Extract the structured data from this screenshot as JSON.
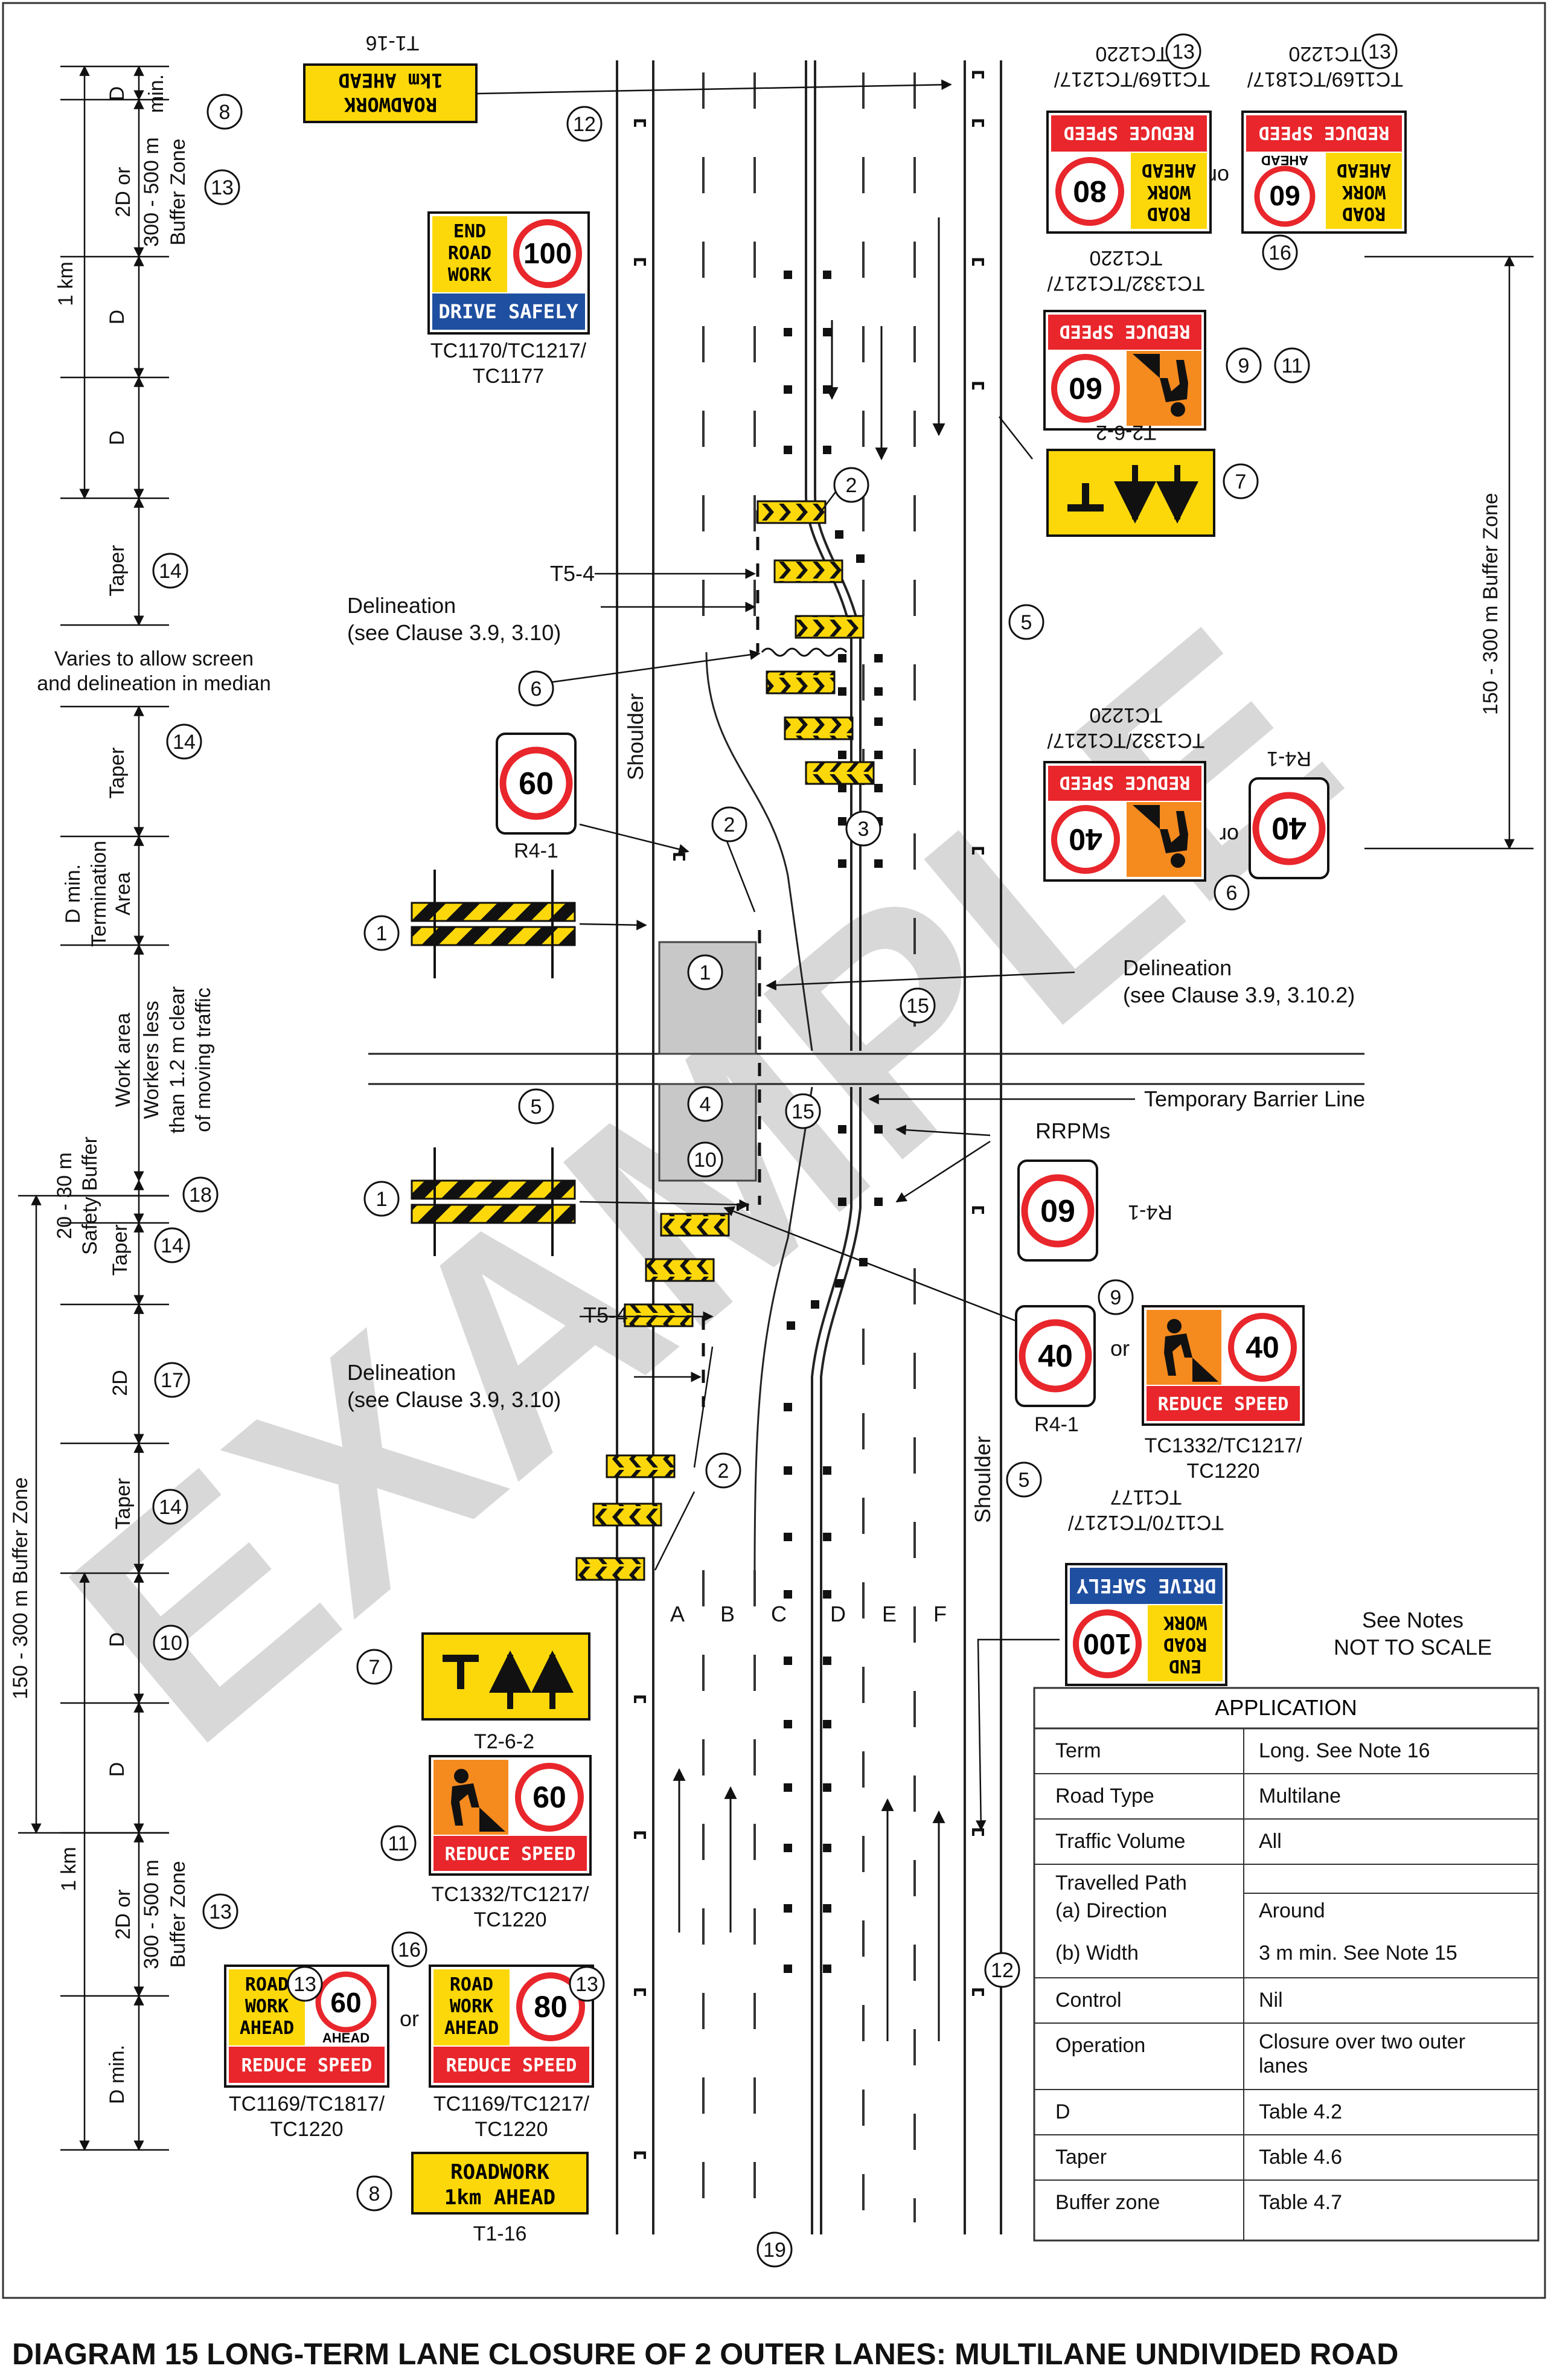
{
  "diagram_title": "DIAGRAM 15    LONG-TERM LANE CLOSURE OF 2 OUTER LANES: MULTILANE UNDIVIDED ROAD",
  "watermark": "EXAMPLE",
  "left_dims": {
    "D": "D",
    "min": "min.",
    "twoD_or": "2D or",
    "buffer_300_500": "300 - 500 m",
    "buffer_zone": "Buffer Zone",
    "one_km": "1 km",
    "taper": "Taper",
    "varies_1": "Varies to allow screen",
    "varies_2": "and delineation in median",
    "d_min": "D min.",
    "termination": "Termination",
    "area": "Area",
    "work_area": "Work area",
    "workers_1": "Workers less",
    "workers_2": "than 1.2 m clear",
    "workers_3": "of moving traffic",
    "safety_20_30": "20 - 30 m",
    "safety_buffer": "Safety Buffer",
    "twoD": "2D",
    "buffer_150_300": "150 - 300 m Buffer Zone"
  },
  "right_dims": {
    "buffer_150_300": "150 - 300 m Buffer Zone"
  },
  "callouts": {
    "n1": "1",
    "n2": "2",
    "n3": "3",
    "n4": "4",
    "n5": "5",
    "n6": "6",
    "n7": "7",
    "n8": "8",
    "n9": "9",
    "n10": "10",
    "n11": "11",
    "n12": "12",
    "n13": "13",
    "n14": "14",
    "n15": "15",
    "n16": "16",
    "n17": "17",
    "n18": "18",
    "n19": "19"
  },
  "labels": {
    "shoulder": "Shoulder",
    "t5_4": "T5-4",
    "delineation": "Delineation",
    "see_39_310": "(see Clause 3.9, 3.10)",
    "see_39_3102": "(see Clause 3.9, 3.10.2)",
    "temp_barrier": "Temporary Barrier Line",
    "rrpms": "RRPMs",
    "or": "or",
    "see_notes": "See Notes",
    "not_to_scale": "NOT TO SCALE",
    "lanes": [
      "A",
      "B",
      "C",
      "D",
      "E",
      "F"
    ]
  },
  "signs": {
    "roadwork_1km": {
      "line1": "ROADWORK",
      "line2": "1km AHEAD",
      "code": "T1-16"
    },
    "end_roadwork": {
      "l1": "END",
      "l2": "ROAD",
      "l3": "WORK",
      "speed": "100",
      "bar": "DRIVE SAFELY",
      "code1": "TC1170/TC1217/",
      "code2": "TC1177"
    },
    "rw80": {
      "l1": "ROAD",
      "l2": "WORK",
      "l3": "AHEAD",
      "speed": "80",
      "bar": "REDUCE SPEED",
      "code1": "TC1169/TC1217/",
      "code2": "TC1220"
    },
    "rw60": {
      "l1": "ROAD",
      "l2": "WORK",
      "l3": "AHEAD",
      "speed": "60",
      "ahead": "AHEAD",
      "bar": "REDUCE SPEED",
      "code1": "TC1169/TC1817/",
      "code2": "TC1220"
    },
    "worker60": {
      "speed": "60",
      "bar": "REDUCE SPEED",
      "code1": "TC1332/TC1217/",
      "code2": "TC1220"
    },
    "worker40": {
      "speed": "40",
      "bar": "REDUCE SPEED",
      "code1": "TC1332/TC1217/",
      "code2": "TC1220"
    },
    "lanes_sign": {
      "code": "T2-6-2"
    },
    "r4_60": {
      "speed": "60",
      "code": "R4-1"
    },
    "r4_40": {
      "speed": "40",
      "code": "R4-1"
    }
  },
  "application": {
    "header": "APPLICATION",
    "rows": [
      {
        "term": "Term",
        "value": "Long. See Note 16"
      },
      {
        "term": "Road Type",
        "value": "Multilane"
      },
      {
        "term": "Traffic Volume",
        "value": "All"
      },
      {
        "term": "Travelled Path",
        "term2": "(a) Direction",
        "value": "Around"
      },
      {
        "term": "(b) Width",
        "value": "3 m min. See Note 15"
      },
      {
        "term": "Control",
        "value": "Nil"
      },
      {
        "term": "Operation",
        "value": "Closure over two outer",
        "value2": "lanes"
      },
      {
        "term": "D",
        "value": "Table 4.2"
      },
      {
        "term": "Taper",
        "value": "Table 4.6"
      },
      {
        "term": "Buffer zone",
        "value": "Table 4.7"
      }
    ]
  },
  "colors": {
    "sign_yellow": "#fcd80a",
    "sign_red": "#e8262b",
    "sign_orange": "#f58a1f",
    "sign_blue": "#1f4fa0",
    "roadwork_area": "#c8c8c8",
    "watermark": "#d6d6d6"
  }
}
